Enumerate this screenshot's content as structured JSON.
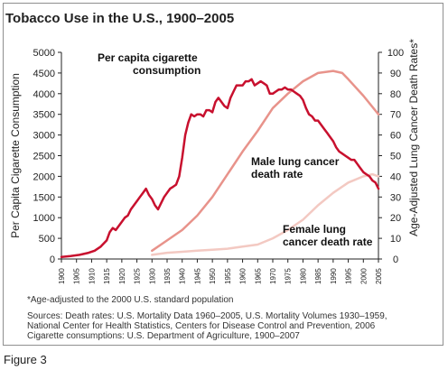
{
  "title": "Tobacco Use in the U.S., 1900–2005",
  "caption": "Figure 3",
  "footnote": "*Age-adjusted to the 2000 U.S. standard population",
  "sources": [
    "Sources: Death rates: U.S. Mortality Data 1960–2005, U.S. Mortality Volumes 1930–1959,",
    "National Center for Health Statistics, Centers for Disease Control and Prevention, 2006",
    "Cigarette consumptions: U.S. Department of Agriculture, 1900–2007"
  ],
  "colors": {
    "cigarette": "#c8102e",
    "male": "#e8938b",
    "female": "#f3c9c2",
    "axis": "#222222"
  },
  "chart_data": {
    "type": "line",
    "title": "Tobacco Use in the U.S., 1900–2005",
    "ylabel": "Per Capita Cigarette Consumption",
    "y2label": "Age-Adjusted Lung Cancer Death Rates*",
    "xlim": [
      1900,
      2005
    ],
    "ylim": [
      0,
      5000
    ],
    "y2lim": [
      0,
      100
    ],
    "x_ticks": [
      1900,
      1905,
      1910,
      1915,
      1920,
      1925,
      1930,
      1935,
      1940,
      1945,
      1950,
      1955,
      1960,
      1965,
      1970,
      1975,
      1980,
      1985,
      1990,
      1995,
      2000,
      2005
    ],
    "x_tick_labels": [
      "1900",
      "1905",
      "1910",
      "1915",
      "1920",
      "1925",
      "1930",
      "1935",
      "1940",
      "1945",
      "1950",
      "1955",
      "1960",
      "1965",
      "1970",
      "1975",
      "1980",
      "1985",
      "1990",
      "1995",
      "2000",
      "2005"
    ],
    "y_ticks": [
      0,
      500,
      1000,
      1500,
      2000,
      2500,
      3000,
      3500,
      4000,
      4500,
      5000
    ],
    "y_tick_labels": [
      "0",
      "500",
      "1000",
      "1500",
      "2000",
      "2500",
      "3000",
      "3500",
      "4000",
      "4500",
      "5000"
    ],
    "y2_ticks": [
      0,
      10,
      20,
      30,
      40,
      50,
      60,
      70,
      80,
      90,
      100
    ],
    "y2_tick_labels": [
      "0",
      "10",
      "20",
      "30",
      "40",
      "50",
      "60",
      "70",
      "80",
      "90",
      "100"
    ],
    "grid": false,
    "series": [
      {
        "name": "Per capita cigarette consumption",
        "axis": "left",
        "x": [
          1900,
          1903,
          1906,
          1909,
          1911,
          1913,
          1915,
          1916,
          1917,
          1918,
          1919,
          1920,
          1921,
          1922,
          1923,
          1924,
          1925,
          1926,
          1927,
          1928,
          1929,
          1930,
          1931,
          1932,
          1933,
          1934,
          1935,
          1936,
          1937,
          1938,
          1939,
          1940,
          1941,
          1942,
          1943,
          1944,
          1945,
          1946,
          1947,
          1948,
          1949,
          1950,
          1951,
          1952,
          1953,
          1954,
          1955,
          1956,
          1957,
          1958,
          1959,
          1960,
          1961,
          1962,
          1963,
          1964,
          1965,
          1966,
          1967,
          1968,
          1969,
          1970,
          1971,
          1972,
          1973,
          1974,
          1975,
          1976,
          1977,
          1978,
          1979,
          1980,
          1981,
          1982,
          1983,
          1984,
          1985,
          1986,
          1987,
          1988,
          1989,
          1990,
          1991,
          1992,
          1993,
          1994,
          1995,
          1996,
          1997,
          1998,
          1999,
          2000,
          2001,
          2002,
          2003,
          2004,
          2005
        ],
        "y": [
          50,
          70,
          100,
          150,
          200,
          300,
          450,
          650,
          750,
          700,
          800,
          900,
          1000,
          1050,
          1200,
          1300,
          1400,
          1500,
          1600,
          1700,
          1550,
          1450,
          1300,
          1200,
          1350,
          1500,
          1600,
          1700,
          1750,
          1800,
          2000,
          2450,
          3000,
          3300,
          3500,
          3450,
          3500,
          3500,
          3450,
          3600,
          3600,
          3550,
          3800,
          3900,
          3800,
          3700,
          3650,
          3900,
          4050,
          4200,
          4200,
          4200,
          4300,
          4300,
          4350,
          4200,
          4250,
          4300,
          4250,
          4200,
          4000,
          4000,
          4050,
          4100,
          4100,
          4150,
          4100,
          4100,
          4050,
          4000,
          3950,
          3850,
          3650,
          3500,
          3450,
          3350,
          3350,
          3250,
          3150,
          3050,
          2950,
          2850,
          2700,
          2600,
          2550,
          2500,
          2450,
          2400,
          2400,
          2300,
          2200,
          2100,
          2050,
          2000,
          1900,
          1850,
          1700
        ]
      },
      {
        "name": "Male lung cancer death rate",
        "axis": "right",
        "x": [
          1930,
          1935,
          1940,
          1945,
          1950,
          1955,
          1960,
          1965,
          1970,
          1975,
          1980,
          1985,
          1990,
          1993,
          1995,
          2000,
          2005
        ],
        "y": [
          4,
          9,
          14,
          21,
          30,
          41,
          52,
          62,
          73,
          80,
          86,
          90,
          91,
          90,
          87,
          79,
          70
        ]
      },
      {
        "name": "Female lung cancer death rate",
        "axis": "right",
        "x": [
          1930,
          1935,
          1940,
          1945,
          1950,
          1955,
          1960,
          1965,
          1970,
          1975,
          1980,
          1985,
          1990,
          1995,
          2000,
          2003,
          2005
        ],
        "y": [
          2,
          3,
          3.5,
          4,
          4.5,
          5,
          6,
          7,
          10,
          14,
          19,
          26,
          32,
          37,
          40,
          41,
          40
        ]
      }
    ],
    "annotations": [
      {
        "series": 0,
        "lines": [
          "Per capita cigarette",
          "consumption"
        ]
      },
      {
        "series": 1,
        "lines": [
          "Male lung cancer",
          "death rate"
        ]
      },
      {
        "series": 2,
        "lines": [
          "Female lung",
          "cancer death rate"
        ]
      }
    ]
  }
}
